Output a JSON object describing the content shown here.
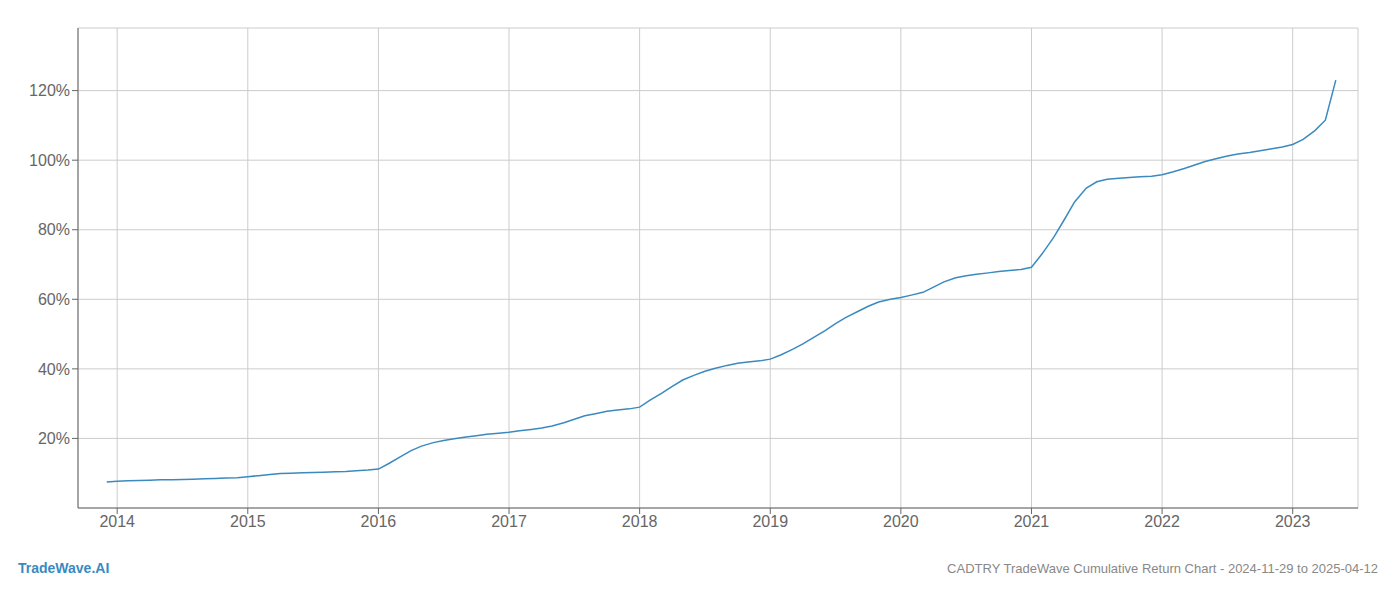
{
  "chart_data": {
    "type": "line",
    "title": "CADTRY TradeWave Cumulative Return Chart - 2024-11-29 to 2025-04-12",
    "annotations": [
      {
        "text": "TradeWave.AI",
        "color": "#3a8abf"
      }
    ],
    "color": "#3a8abf",
    "grid": true,
    "x": [
      2013.92,
      2014.0,
      2014.08,
      2014.17,
      2014.25,
      2014.33,
      2014.42,
      2014.5,
      2014.58,
      2014.67,
      2014.75,
      2014.83,
      2014.92,
      2015.0,
      2015.08,
      2015.17,
      2015.25,
      2015.33,
      2015.42,
      2015.5,
      2015.58,
      2015.67,
      2015.75,
      2015.83,
      2015.92,
      2016.0,
      2016.08,
      2016.17,
      2016.25,
      2016.33,
      2016.42,
      2016.5,
      2016.58,
      2016.67,
      2016.75,
      2016.83,
      2016.92,
      2017.0,
      2017.08,
      2017.17,
      2017.25,
      2017.33,
      2017.42,
      2017.5,
      2017.58,
      2017.67,
      2017.75,
      2017.83,
      2017.92,
      2018.0,
      2018.08,
      2018.17,
      2018.25,
      2018.33,
      2018.42,
      2018.5,
      2018.58,
      2018.67,
      2018.75,
      2018.83,
      2018.92,
      2019.0,
      2019.08,
      2019.17,
      2019.25,
      2019.33,
      2019.42,
      2019.5,
      2019.58,
      2019.67,
      2019.75,
      2019.83,
      2019.92,
      2020.0,
      2020.08,
      2020.17,
      2020.25,
      2020.33,
      2020.42,
      2020.5,
      2020.58,
      2020.67,
      2020.75,
      2020.83,
      2020.92,
      2021.0,
      2021.08,
      2021.17,
      2021.25,
      2021.33,
      2021.42,
      2021.5,
      2021.58,
      2021.67,
      2021.75,
      2021.83,
      2021.92,
      2022.0,
      2022.08,
      2022.17,
      2022.25,
      2022.33,
      2022.42,
      2022.5,
      2022.58,
      2022.67,
      2022.75,
      2022.83,
      2022.92,
      2023.0,
      2023.08,
      2023.17,
      2023.25,
      2023.33
    ],
    "values": [
      0.075,
      0.077,
      0.078,
      0.079,
      0.08,
      0.081,
      0.081,
      0.082,
      0.083,
      0.084,
      0.085,
      0.086,
      0.087,
      0.09,
      0.093,
      0.096,
      0.099,
      0.1,
      0.101,
      0.102,
      0.103,
      0.104,
      0.105,
      0.107,
      0.109,
      0.112,
      0.128,
      0.148,
      0.165,
      0.178,
      0.188,
      0.194,
      0.199,
      0.204,
      0.208,
      0.212,
      0.215,
      0.218,
      0.222,
      0.226,
      0.23,
      0.236,
      0.245,
      0.255,
      0.265,
      0.272,
      0.278,
      0.282,
      0.285,
      0.29,
      0.31,
      0.33,
      0.35,
      0.368,
      0.382,
      0.393,
      0.402,
      0.41,
      0.416,
      0.42,
      0.423,
      0.428,
      0.44,
      0.456,
      0.472,
      0.49,
      0.51,
      0.53,
      0.548,
      0.565,
      0.58,
      0.592,
      0.6,
      0.605,
      0.612,
      0.62,
      0.635,
      0.65,
      0.662,
      0.668,
      0.672,
      0.676,
      0.68,
      0.683,
      0.686,
      0.692,
      0.73,
      0.778,
      0.828,
      0.88,
      0.92,
      0.938,
      0.945,
      0.948,
      0.95,
      0.952,
      0.954,
      0.958,
      0.966,
      0.976,
      0.986,
      0.996,
      1.005,
      1.012,
      1.018,
      1.022,
      1.027,
      1.032,
      1.038,
      1.045,
      1.06,
      1.085,
      1.115,
      1.23
    ],
    "xlim": [
      2013.7,
      2023.5
    ],
    "ylim": [
      0.0,
      1.38
    ],
    "xticks": [
      2014,
      2015,
      2016,
      2017,
      2018,
      2019,
      2020,
      2021,
      2022,
      2023
    ],
    "yticks": [
      {
        "value": 0.2,
        "label": "20%"
      },
      {
        "value": 0.4,
        "label": "40%"
      },
      {
        "value": 0.6,
        "label": "60%"
      },
      {
        "value": 0.8,
        "label": "80%"
      },
      {
        "value": 1.0,
        "label": "100%"
      },
      {
        "value": 1.2,
        "label": "120%"
      }
    ]
  }
}
